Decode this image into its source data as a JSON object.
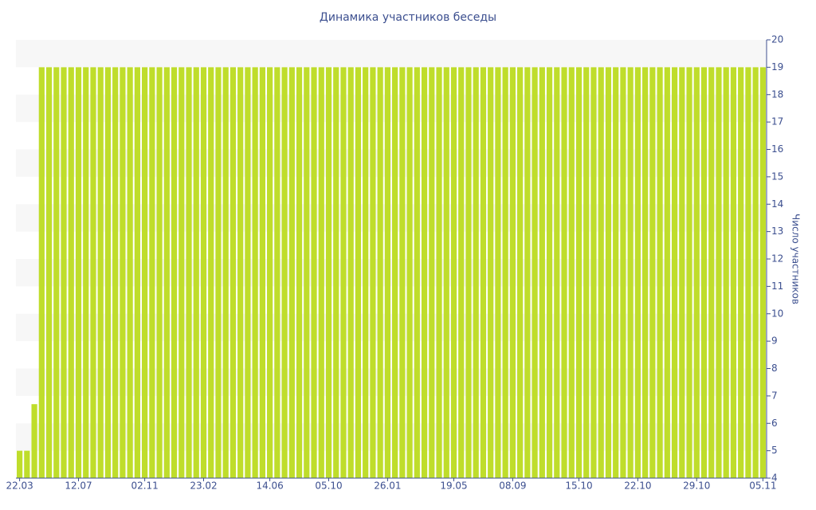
{
  "chart_data": {
    "type": "bar",
    "title": "Динамика участников беседы",
    "y_label": "Число участников",
    "categories": [
      "22.03",
      null,
      null,
      null,
      null,
      null,
      null,
      null,
      "12.07",
      null,
      null,
      null,
      null,
      null,
      null,
      null,
      null,
      "02.11",
      null,
      null,
      null,
      null,
      null,
      null,
      null,
      "23.02",
      null,
      null,
      null,
      null,
      null,
      null,
      null,
      null,
      "14.06",
      null,
      null,
      null,
      null,
      null,
      null,
      null,
      "05.10",
      null,
      null,
      null,
      null,
      null,
      null,
      null,
      "26.01",
      null,
      null,
      null,
      null,
      null,
      null,
      null,
      null,
      "19.05",
      null,
      null,
      null,
      null,
      null,
      null,
      null,
      "08.09",
      null,
      null,
      null,
      null,
      null,
      null,
      null,
      null,
      "15.10",
      null,
      null,
      null,
      null,
      null,
      null,
      null,
      "22.10",
      null,
      null,
      null,
      null,
      null,
      null,
      null,
      "29.10",
      null,
      null,
      null,
      null,
      null,
      null,
      null,
      null,
      "05.11"
    ],
    "values": [
      5,
      5,
      6.7,
      19,
      19,
      19,
      19,
      19,
      19,
      19,
      19,
      19,
      19,
      19,
      19,
      19,
      19,
      19,
      19,
      19,
      19,
      19,
      19,
      19,
      19,
      19,
      19,
      19,
      19,
      19,
      19,
      19,
      19,
      19,
      19,
      19,
      19,
      19,
      19,
      19,
      19,
      19,
      19,
      19,
      19,
      19,
      19,
      19,
      19,
      19,
      19,
      19,
      19,
      19,
      19,
      19,
      19,
      19,
      19,
      19,
      19,
      19,
      19,
      19,
      19,
      19,
      19,
      19,
      19,
      19,
      19,
      19,
      19,
      19,
      19,
      19,
      19,
      19,
      19,
      19,
      19,
      19,
      19,
      19,
      19,
      19,
      19,
      19,
      19,
      19,
      19,
      19,
      19,
      19,
      19,
      19,
      19,
      19,
      19,
      19,
      19,
      19
    ],
    "color": "#bfdd2b",
    "ylim": [
      4,
      20
    ],
    "yticks": [
      4,
      5,
      6,
      7,
      8,
      9,
      10,
      11,
      12,
      13,
      14,
      15,
      16,
      17,
      18,
      19,
      20
    ],
    "y_axis_side": "right",
    "grid": true
  }
}
